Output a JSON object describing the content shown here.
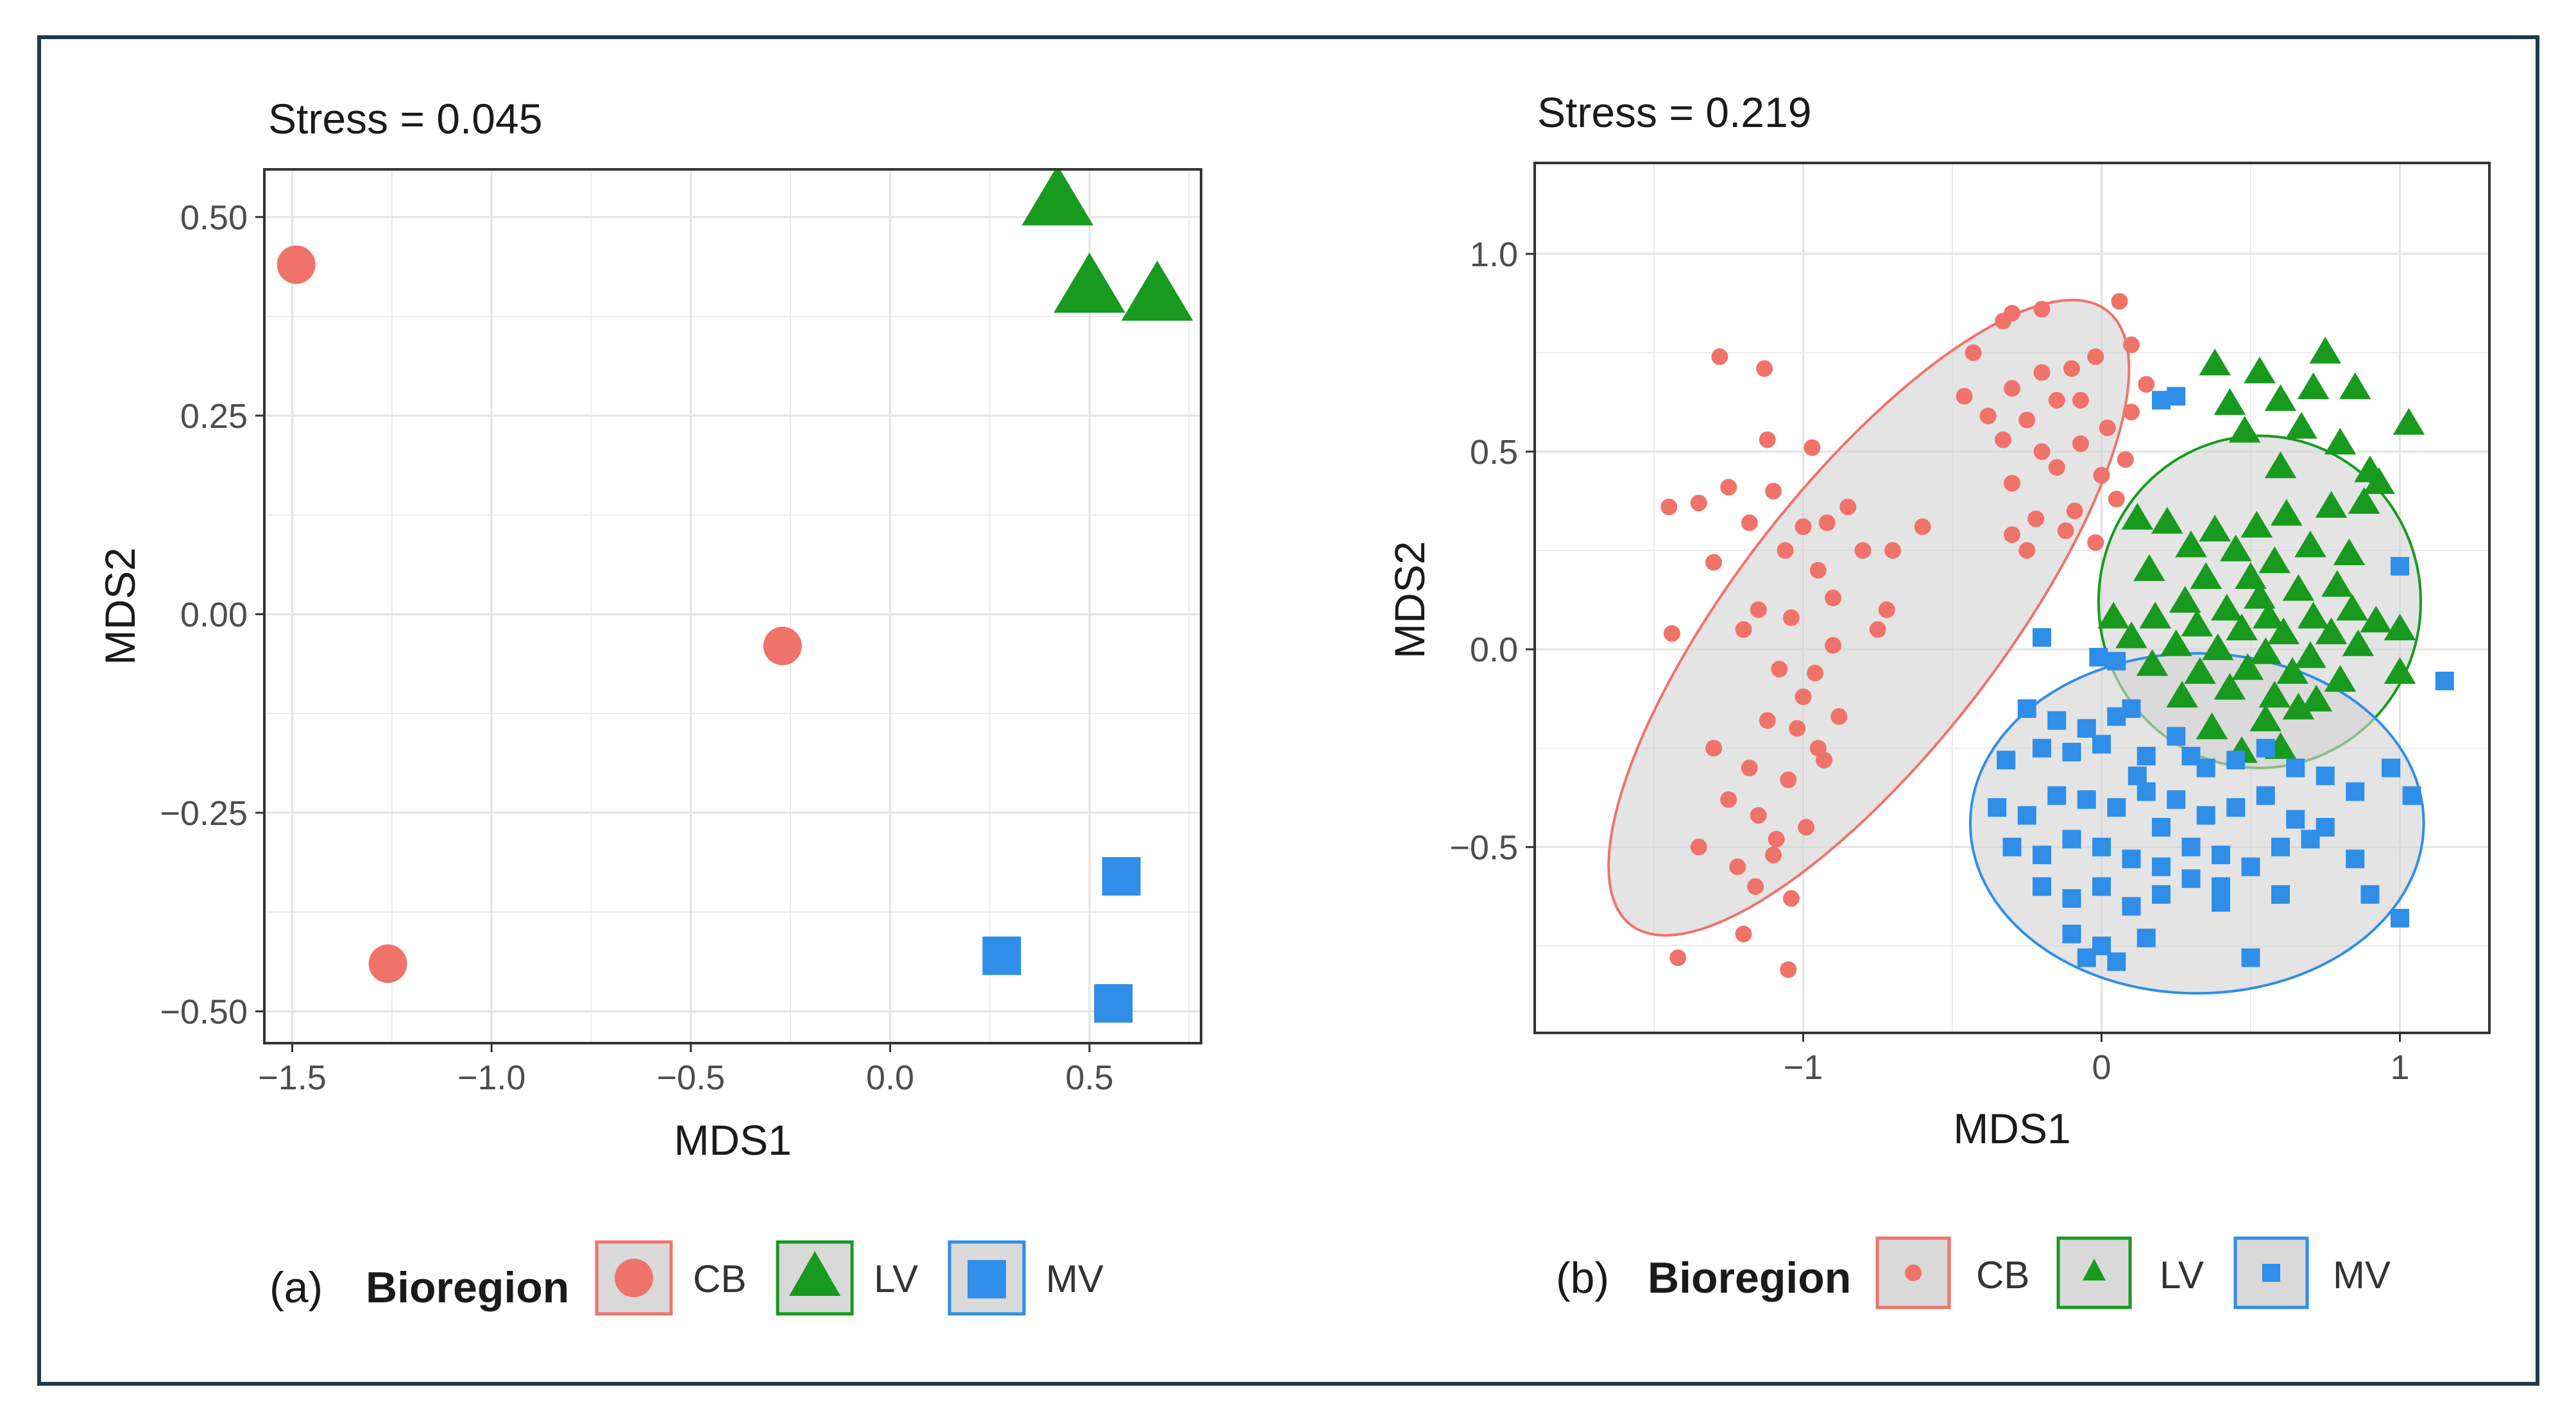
{
  "colors": {
    "CB": "#f0736a",
    "LV": "#179a1d",
    "MV": "#2f8ee8",
    "ellipse_fill": "#d3d3d3"
  },
  "chart_data": [
    {
      "panel": "(a)",
      "type": "scatter",
      "title": "Stress = 0.045",
      "xlabel": "MDS1",
      "ylabel": "MDS2",
      "xlim": [
        -1.57,
        0.78
      ],
      "ylim": [
        -0.54,
        0.56
      ],
      "xticks": [
        -1.5,
        -1.0,
        -0.5,
        0.0,
        0.5
      ],
      "xtick_labels": [
        "−1.5",
        "−1.0",
        "−0.5",
        "0.0",
        "0.5"
      ],
      "yticks": [
        -0.5,
        -0.25,
        0.0,
        0.25,
        0.5
      ],
      "ytick_labels": [
        "−0.50",
        "−0.25",
        "0.00",
        "0.25",
        "0.50"
      ],
      "grid": true,
      "legend": {
        "panel_label": "(a)",
        "title": "Bioregion",
        "items": [
          "CB",
          "LV",
          "MV"
        ]
      },
      "series": [
        {
          "name": "CB",
          "shape": "circle",
          "points": [
            [
              -1.49,
              0.44
            ],
            [
              -1.26,
              -0.44
            ],
            [
              -0.27,
              -0.04
            ]
          ]
        },
        {
          "name": "LV",
          "shape": "triangle",
          "points": [
            [
              0.42,
              0.52
            ],
            [
              0.5,
              0.41
            ],
            [
              0.67,
              0.4
            ]
          ]
        },
        {
          "name": "MV",
          "shape": "square",
          "points": [
            [
              0.28,
              -0.43
            ],
            [
              0.58,
              -0.33
            ],
            [
              0.56,
              -0.49
            ]
          ]
        }
      ]
    },
    {
      "panel": "(b)",
      "type": "scatter",
      "title": "Stress = 0.219",
      "xlabel": "MDS1",
      "ylabel": "MDS2",
      "xlim": [
        -1.9,
        1.3
      ],
      "ylim": [
        -0.97,
        1.23
      ],
      "xticks": [
        -1,
        0,
        1
      ],
      "xtick_labels": [
        "−1",
        "0",
        "1"
      ],
      "yticks": [
        -0.5,
        0.0,
        0.5,
        1.0
      ],
      "ytick_labels": [
        "−0.5",
        "0.0",
        "0.5",
        "1.0"
      ],
      "grid": true,
      "legend": {
        "panel_label": "(b)",
        "title": "Bioregion",
        "items": [
          "CB",
          "LV",
          "MV"
        ]
      },
      "ellipses": [
        {
          "group": "CB",
          "cx": -0.78,
          "cy": 0.08,
          "semi_major": 1.12,
          "semi_minor": 0.39,
          "angle_deg": 42
        },
        {
          "group": "LV",
          "cx": 0.53,
          "cy": 0.12,
          "semi_major": 0.54,
          "semi_minor": 0.42,
          "angle_deg": 0
        },
        {
          "group": "MV",
          "cx": 0.32,
          "cy": -0.44,
          "semi_major": 0.76,
          "semi_minor": 0.43,
          "angle_deg": 0
        }
      ],
      "series": [
        {
          "name": "CB",
          "shape": "circle",
          "points": [
            [
              -1.28,
              0.74
            ],
            [
              -1.13,
              0.71
            ],
            [
              -1.12,
              0.53
            ],
            [
              -0.97,
              0.51
            ],
            [
              -1.45,
              0.36
            ],
            [
              -1.35,
              0.37
            ],
            [
              -1.25,
              0.41
            ],
            [
              -1.1,
              0.4
            ],
            [
              -1.18,
              0.32
            ],
            [
              -1.0,
              0.31
            ],
            [
              -0.92,
              0.32
            ],
            [
              -0.85,
              0.36
            ],
            [
              -0.8,
              0.25
            ],
            [
              -0.7,
              0.25
            ],
            [
              -0.6,
              0.31
            ],
            [
              -1.3,
              0.22
            ],
            [
              -1.06,
              0.25
            ],
            [
              -0.95,
              0.2
            ],
            [
              -0.72,
              0.1
            ],
            [
              -1.15,
              0.1
            ],
            [
              -1.04,
              0.08
            ],
            [
              -0.9,
              0.13
            ],
            [
              -1.44,
              0.04
            ],
            [
              -1.2,
              0.05
            ],
            [
              -1.08,
              -0.05
            ],
            [
              -0.96,
              -0.06
            ],
            [
              -0.9,
              0.01
            ],
            [
              -0.75,
              0.05
            ],
            [
              -1.0,
              -0.12
            ],
            [
              -0.88,
              -0.17
            ],
            [
              -1.12,
              -0.18
            ],
            [
              -1.02,
              -0.2
            ],
            [
              -0.95,
              -0.25
            ],
            [
              -1.3,
              -0.25
            ],
            [
              -1.18,
              -0.3
            ],
            [
              -1.05,
              -0.33
            ],
            [
              -0.93,
              -0.28
            ],
            [
              -1.25,
              -0.38
            ],
            [
              -1.15,
              -0.42
            ],
            [
              -1.09,
              -0.48
            ],
            [
              -0.99,
              -0.45
            ],
            [
              -1.35,
              -0.5
            ],
            [
              -1.22,
              -0.55
            ],
            [
              -1.1,
              -0.52
            ],
            [
              -1.16,
              -0.6
            ],
            [
              -1.04,
              -0.63
            ],
            [
              -1.2,
              -0.72
            ],
            [
              -1.42,
              -0.78
            ],
            [
              -1.05,
              -0.81
            ],
            [
              -0.3,
              0.85
            ],
            [
              -0.2,
              0.86
            ],
            [
              -0.33,
              0.83
            ],
            [
              0.06,
              0.88
            ],
            [
              -0.43,
              0.75
            ],
            [
              -0.2,
              0.7
            ],
            [
              -0.1,
              0.71
            ],
            [
              -0.02,
              0.74
            ],
            [
              0.1,
              0.77
            ],
            [
              -0.3,
              0.66
            ],
            [
              -0.15,
              0.63
            ],
            [
              -0.46,
              0.64
            ],
            [
              -0.38,
              0.59
            ],
            [
              -0.25,
              0.58
            ],
            [
              -0.07,
              0.63
            ],
            [
              0.1,
              0.6
            ],
            [
              -0.33,
              0.53
            ],
            [
              -0.2,
              0.5
            ],
            [
              -0.07,
              0.52
            ],
            [
              0.02,
              0.56
            ],
            [
              -0.15,
              0.46
            ],
            [
              -0.3,
              0.42
            ],
            [
              0.0,
              0.44
            ],
            [
              0.05,
              0.38
            ],
            [
              -0.09,
              0.35
            ],
            [
              -0.22,
              0.33
            ],
            [
              -0.3,
              0.29
            ],
            [
              -0.12,
              0.3
            ],
            [
              -0.02,
              0.27
            ],
            [
              -0.25,
              0.25
            ],
            [
              0.15,
              0.67
            ],
            [
              0.08,
              0.48
            ]
          ]
        },
        {
          "name": "LV",
          "shape": "triangle",
          "points": [
            [
              0.38,
              0.72
            ],
            [
              0.53,
              0.7
            ],
            [
              0.75,
              0.75
            ],
            [
              0.43,
              0.62
            ],
            [
              0.6,
              0.63
            ],
            [
              0.71,
              0.66
            ],
            [
              0.85,
              0.66
            ],
            [
              1.03,
              0.57
            ],
            [
              0.48,
              0.55
            ],
            [
              0.67,
              0.56
            ],
            [
              0.8,
              0.52
            ],
            [
              0.9,
              0.45
            ],
            [
              0.93,
              0.42
            ],
            [
              0.6,
              0.46
            ],
            [
              0.12,
              0.33
            ],
            [
              0.22,
              0.32
            ],
            [
              0.38,
              0.3
            ],
            [
              0.52,
              0.31
            ],
            [
              0.62,
              0.34
            ],
            [
              0.77,
              0.36
            ],
            [
              0.88,
              0.37
            ],
            [
              0.3,
              0.26
            ],
            [
              0.45,
              0.25
            ],
            [
              0.58,
              0.22
            ],
            [
              0.7,
              0.26
            ],
            [
              0.83,
              0.24
            ],
            [
              0.16,
              0.2
            ],
            [
              0.35,
              0.18
            ],
            [
              0.5,
              0.18
            ],
            [
              0.66,
              0.15
            ],
            [
              0.79,
              0.16
            ],
            [
              0.28,
              0.12
            ],
            [
              0.42,
              0.1
            ],
            [
              0.56,
              0.08
            ],
            [
              0.71,
              0.08
            ],
            [
              0.84,
              0.1
            ],
            [
              0.04,
              0.08
            ],
            [
              0.18,
              0.08
            ],
            [
              0.32,
              0.06
            ],
            [
              0.47,
              0.05
            ],
            [
              0.61,
              0.04
            ],
            [
              0.77,
              0.04
            ],
            [
              0.92,
              0.07
            ],
            [
              0.1,
              0.03
            ],
            [
              0.25,
              0.01
            ],
            [
              0.39,
              0.0
            ],
            [
              0.55,
              -0.01
            ],
            [
              0.7,
              -0.02
            ],
            [
              0.86,
              0.01
            ],
            [
              0.17,
              -0.04
            ],
            [
              0.33,
              -0.06
            ],
            [
              0.49,
              -0.05
            ],
            [
              0.64,
              -0.06
            ],
            [
              0.8,
              -0.08
            ],
            [
              1.0,
              0.05
            ],
            [
              1.0,
              -0.06
            ],
            [
              0.27,
              -0.12
            ],
            [
              0.43,
              -0.1
            ],
            [
              0.58,
              -0.12
            ],
            [
              0.72,
              -0.13
            ],
            [
              0.37,
              -0.2
            ],
            [
              0.55,
              -0.18
            ],
            [
              0.6,
              -0.25
            ],
            [
              0.47,
              -0.26
            ],
            [
              0.66,
              -0.15
            ],
            [
              0.53,
              0.13
            ]
          ]
        },
        {
          "name": "MV",
          "shape": "square",
          "points": [
            [
              0.2,
              0.63
            ],
            [
              0.25,
              0.64
            ],
            [
              1.0,
              0.21
            ],
            [
              1.15,
              -0.08
            ],
            [
              0.97,
              -0.3
            ],
            [
              1.04,
              -0.37
            ],
            [
              1.0,
              -0.68
            ],
            [
              0.9,
              -0.62
            ],
            [
              -0.2,
              0.03
            ],
            [
              -0.01,
              -0.02
            ],
            [
              0.05,
              -0.03
            ],
            [
              -0.25,
              -0.15
            ],
            [
              -0.15,
              -0.18
            ],
            [
              -0.05,
              -0.2
            ],
            [
              0.05,
              -0.17
            ],
            [
              0.1,
              -0.15
            ],
            [
              -0.2,
              -0.25
            ],
            [
              -0.1,
              -0.26
            ],
            [
              0.0,
              -0.24
            ],
            [
              0.15,
              -0.27
            ],
            [
              0.25,
              -0.22
            ],
            [
              0.35,
              -0.3
            ],
            [
              0.45,
              -0.28
            ],
            [
              0.55,
              -0.25
            ],
            [
              0.65,
              -0.3
            ],
            [
              0.75,
              -0.32
            ],
            [
              0.85,
              -0.36
            ],
            [
              -0.35,
              -0.4
            ],
            [
              -0.25,
              -0.42
            ],
            [
              -0.15,
              -0.37
            ],
            [
              -0.05,
              -0.38
            ],
            [
              0.05,
              -0.4
            ],
            [
              0.15,
              -0.36
            ],
            [
              0.25,
              -0.38
            ],
            [
              0.35,
              -0.42
            ],
            [
              0.45,
              -0.4
            ],
            [
              0.55,
              -0.37
            ],
            [
              0.65,
              -0.43
            ],
            [
              0.75,
              -0.45
            ],
            [
              0.2,
              -0.45
            ],
            [
              -0.3,
              -0.5
            ],
            [
              -0.2,
              -0.52
            ],
            [
              -0.1,
              -0.48
            ],
            [
              0.0,
              -0.5
            ],
            [
              0.1,
              -0.53
            ],
            [
              0.2,
              -0.55
            ],
            [
              0.3,
              -0.5
            ],
            [
              0.4,
              -0.52
            ],
            [
              0.5,
              -0.55
            ],
            [
              0.6,
              -0.5
            ],
            [
              0.7,
              -0.48
            ],
            [
              -0.2,
              -0.6
            ],
            [
              -0.1,
              -0.63
            ],
            [
              0.0,
              -0.6
            ],
            [
              0.1,
              -0.65
            ],
            [
              0.2,
              -0.62
            ],
            [
              0.3,
              -0.58
            ],
            [
              0.4,
              -0.64
            ],
            [
              0.6,
              -0.62
            ],
            [
              -0.1,
              -0.72
            ],
            [
              0.0,
              -0.75
            ],
            [
              0.05,
              -0.79
            ],
            [
              -0.05,
              -0.78
            ],
            [
              0.15,
              -0.73
            ],
            [
              0.5,
              -0.78
            ],
            [
              0.85,
              -0.53
            ],
            [
              0.3,
              -0.27
            ],
            [
              0.12,
              -0.32
            ],
            [
              -0.32,
              -0.28
            ],
            [
              0.4,
              -0.6
            ]
          ]
        }
      ]
    }
  ]
}
